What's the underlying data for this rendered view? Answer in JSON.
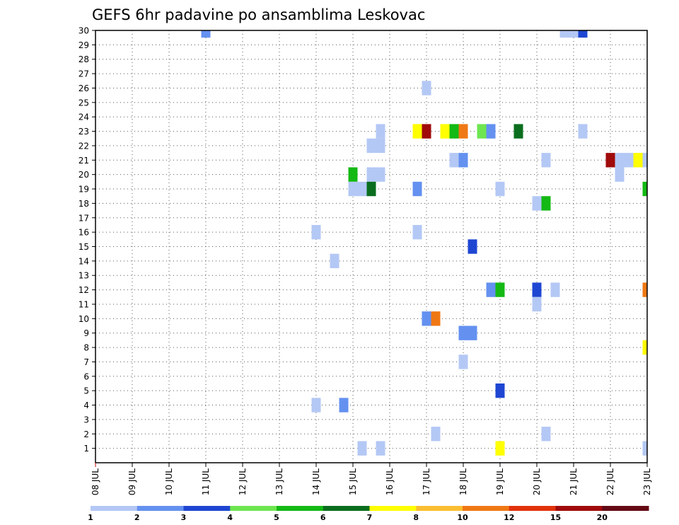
{
  "chart_data": {
    "type": "heatmap",
    "title": "GEFS 6hr padavine po ansamblima Leskovac",
    "y_ticks": [
      "1",
      "2",
      "3",
      "4",
      "5",
      "6",
      "7",
      "8",
      "9",
      "10",
      "11",
      "12",
      "13",
      "14",
      "15",
      "16",
      "17",
      "18",
      "19",
      "20",
      "21",
      "22",
      "23",
      "24",
      "25",
      "26",
      "27",
      "28",
      "29",
      "30"
    ],
    "ylim": [
      0,
      30
    ],
    "x_ticks": [
      "08 JUL",
      "09 JUL",
      "10 JUL",
      "11 JUL",
      "12 JUL",
      "13 JUL",
      "14 JUL",
      "15 JUL",
      "16 JUL",
      "17 JUL",
      "18 JUL",
      "19 JUL",
      "20 JUL",
      "21 JUL",
      "22 JUL",
      "23 JUL"
    ],
    "xlim": [
      0,
      15
    ],
    "x_unit": "days since 08 JUL",
    "grid": true,
    "colorbar": {
      "labels": [
        "1",
        "2",
        "3",
        "4",
        "5",
        "6",
        "7",
        "8",
        "10",
        "12",
        "15",
        "20"
      ],
      "colors": [
        "#b4c8f5",
        "#6491f0",
        "#1e46d2",
        "#6ee650",
        "#14b914",
        "#0a6e1e",
        "#ffff00",
        "#fabe32",
        "#f07814",
        "#e1320a",
        "#a00a0a",
        "#640a14"
      ]
    },
    "cells": [
      {
        "x": 3.0,
        "y": 30,
        "c": 1
      },
      {
        "x": 12.75,
        "y": 30,
        "c": 0
      },
      {
        "x": 13.0,
        "y": 30,
        "c": 0
      },
      {
        "x": 13.25,
        "y": 30,
        "c": 2
      },
      {
        "x": 9.0,
        "y": 26,
        "c": 0
      },
      {
        "x": 7.75,
        "y": 23,
        "c": 0
      },
      {
        "x": 8.75,
        "y": 23,
        "c": 6
      },
      {
        "x": 9.0,
        "y": 23,
        "c": 10
      },
      {
        "x": 9.5,
        "y": 23,
        "c": 6
      },
      {
        "x": 9.75,
        "y": 23,
        "c": 4
      },
      {
        "x": 10.0,
        "y": 23,
        "c": 8
      },
      {
        "x": 10.5,
        "y": 23,
        "c": 3
      },
      {
        "x": 10.75,
        "y": 23,
        "c": 1
      },
      {
        "x": 11.5,
        "y": 23,
        "c": 5
      },
      {
        "x": 13.25,
        "y": 23,
        "c": 0
      },
      {
        "x": 7.5,
        "y": 22,
        "c": 0
      },
      {
        "x": 7.75,
        "y": 22,
        "c": 0
      },
      {
        "x": 9.75,
        "y": 21,
        "c": 0
      },
      {
        "x": 10.0,
        "y": 21,
        "c": 1
      },
      {
        "x": 12.25,
        "y": 21,
        "c": 0
      },
      {
        "x": 14.0,
        "y": 21,
        "c": 10
      },
      {
        "x": 14.25,
        "y": 21,
        "c": 0
      },
      {
        "x": 14.5,
        "y": 21,
        "c": 0
      },
      {
        "x": 14.75,
        "y": 21,
        "c": 6
      },
      {
        "x": 15.0,
        "y": 21,
        "c": 0
      },
      {
        "x": 15.25,
        "y": 21,
        "c": 0
      },
      {
        "x": 7.0,
        "y": 20,
        "c": 4
      },
      {
        "x": 7.5,
        "y": 20,
        "c": 0
      },
      {
        "x": 7.75,
        "y": 20,
        "c": 0
      },
      {
        "x": 14.25,
        "y": 20,
        "c": 0
      },
      {
        "x": 7.0,
        "y": 19,
        "c": 0
      },
      {
        "x": 7.25,
        "y": 19,
        "c": 0
      },
      {
        "x": 7.5,
        "y": 19,
        "c": 5
      },
      {
        "x": 8.75,
        "y": 19,
        "c": 1
      },
      {
        "x": 11.0,
        "y": 19,
        "c": 0
      },
      {
        "x": 15.0,
        "y": 19,
        "c": 4
      },
      {
        "x": 12.0,
        "y": 18,
        "c": 0
      },
      {
        "x": 12.25,
        "y": 18,
        "c": 4
      },
      {
        "x": 6.0,
        "y": 16,
        "c": 0
      },
      {
        "x": 8.75,
        "y": 16,
        "c": 0
      },
      {
        "x": 10.25,
        "y": 15,
        "c": 2
      },
      {
        "x": 6.5,
        "y": 14,
        "c": 0
      },
      {
        "x": 10.75,
        "y": 12,
        "c": 1
      },
      {
        "x": 11.0,
        "y": 12,
        "c": 4
      },
      {
        "x": 12.0,
        "y": 12,
        "c": 2
      },
      {
        "x": 12.5,
        "y": 12,
        "c": 0
      },
      {
        "x": 15.0,
        "y": 12,
        "c": 8
      },
      {
        "x": 12.0,
        "y": 11,
        "c": 0
      },
      {
        "x": 9.0,
        "y": 10,
        "c": 1
      },
      {
        "x": 9.25,
        "y": 10,
        "c": 8
      },
      {
        "x": 10.0,
        "y": 9,
        "c": 1
      },
      {
        "x": 10.25,
        "y": 9,
        "c": 1
      },
      {
        "x": 15.0,
        "y": 8,
        "c": 6
      },
      {
        "x": 10.0,
        "y": 7,
        "c": 0
      },
      {
        "x": 11.0,
        "y": 5,
        "c": 2
      },
      {
        "x": 6.0,
        "y": 4,
        "c": 0
      },
      {
        "x": 6.75,
        "y": 4,
        "c": 1
      },
      {
        "x": 9.25,
        "y": 2,
        "c": 0
      },
      {
        "x": 12.25,
        "y": 2,
        "c": 0
      },
      {
        "x": 7.25,
        "y": 1,
        "c": 0
      },
      {
        "x": 7.75,
        "y": 1,
        "c": 0
      },
      {
        "x": 11.0,
        "y": 1,
        "c": 6
      },
      {
        "x": 15.0,
        "y": 1,
        "c": 0
      }
    ]
  }
}
